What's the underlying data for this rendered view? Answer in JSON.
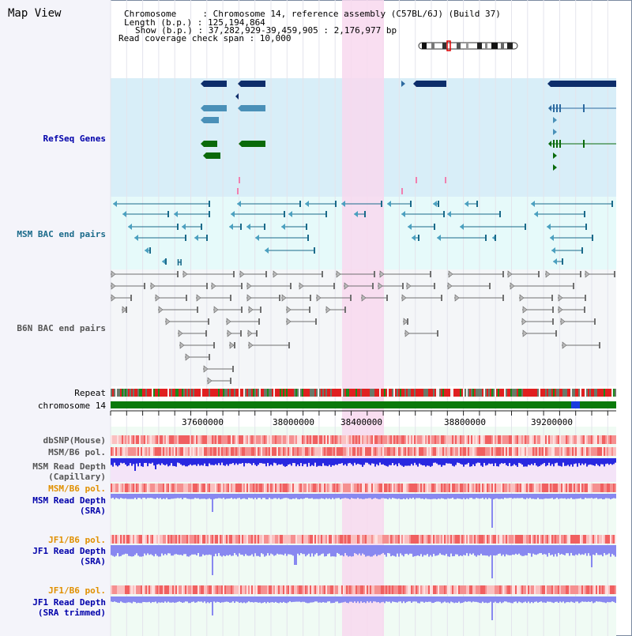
{
  "header": {
    "view_title": "Map View",
    "info_lines": [
      "Chromosome     : Chromosome 14, reference assembly (C57BL/6J) (Build 37)",
      "Length (b.p.) : 125,194,864",
      "Show (b.p.) : 37,282,929-39,459,905 : 2,176,977 bp",
      "Read coverage check span : 10,000"
    ]
  },
  "tracks": {
    "refseq_genes": "RefSeq Genes",
    "msm_bac": "MSM BAC end pairs",
    "b6n_bac": "B6N BAC end pairs",
    "repeat": "Repeat",
    "chromosome": "chromosome 14",
    "dbsnp": "dbSNP(Mouse)",
    "msm_b6_pol_1": "MSM/B6 pol.",
    "msm_read_depth_cap_1": "MSM Read Depth",
    "msm_read_depth_cap_2": "(Capillary)",
    "msm_b6_pol_2": "MSM/B6 pol.",
    "msm_read_depth_sra_1": "MSM Read Depth",
    "msm_read_depth_sra_2": "(SRA)",
    "jf1_b6_pol_1": "JF1/B6 pol.",
    "jf1_read_depth_sra_1": "JF1 Read Depth",
    "jf1_read_depth_sra_2": "(SRA)",
    "jf1_b6_pol_2": "JF1/B6 pol.",
    "jf1_read_depth_trim_1": "JF1 Read Depth",
    "jf1_read_depth_trim_2": "(SRA trimmed)"
  },
  "axis": {
    "ticks": [
      "37600000",
      "38000000",
      "38400000",
      "38800000",
      "39200000"
    ]
  },
  "colors": {
    "refseq_bg": "#d8eef8",
    "bac_bg": "#e6fafa",
    "highlight": "#f8d8ef",
    "gene_dark": "#0d2d6a",
    "gene_light": "#4a90b8",
    "gene_green": "#0a6a0a",
    "msm_bac": "#1a6a8a",
    "b6n_bac": "#707070",
    "chrom_green": "#0a7a0a",
    "depth_blue": "#2828e0",
    "depth_light": "#8888f0",
    "label_blue": "#0000aa",
    "label_orange": "#e09000",
    "label_teal": "#1a6a8a",
    "label_gray": "#555555"
  }
}
